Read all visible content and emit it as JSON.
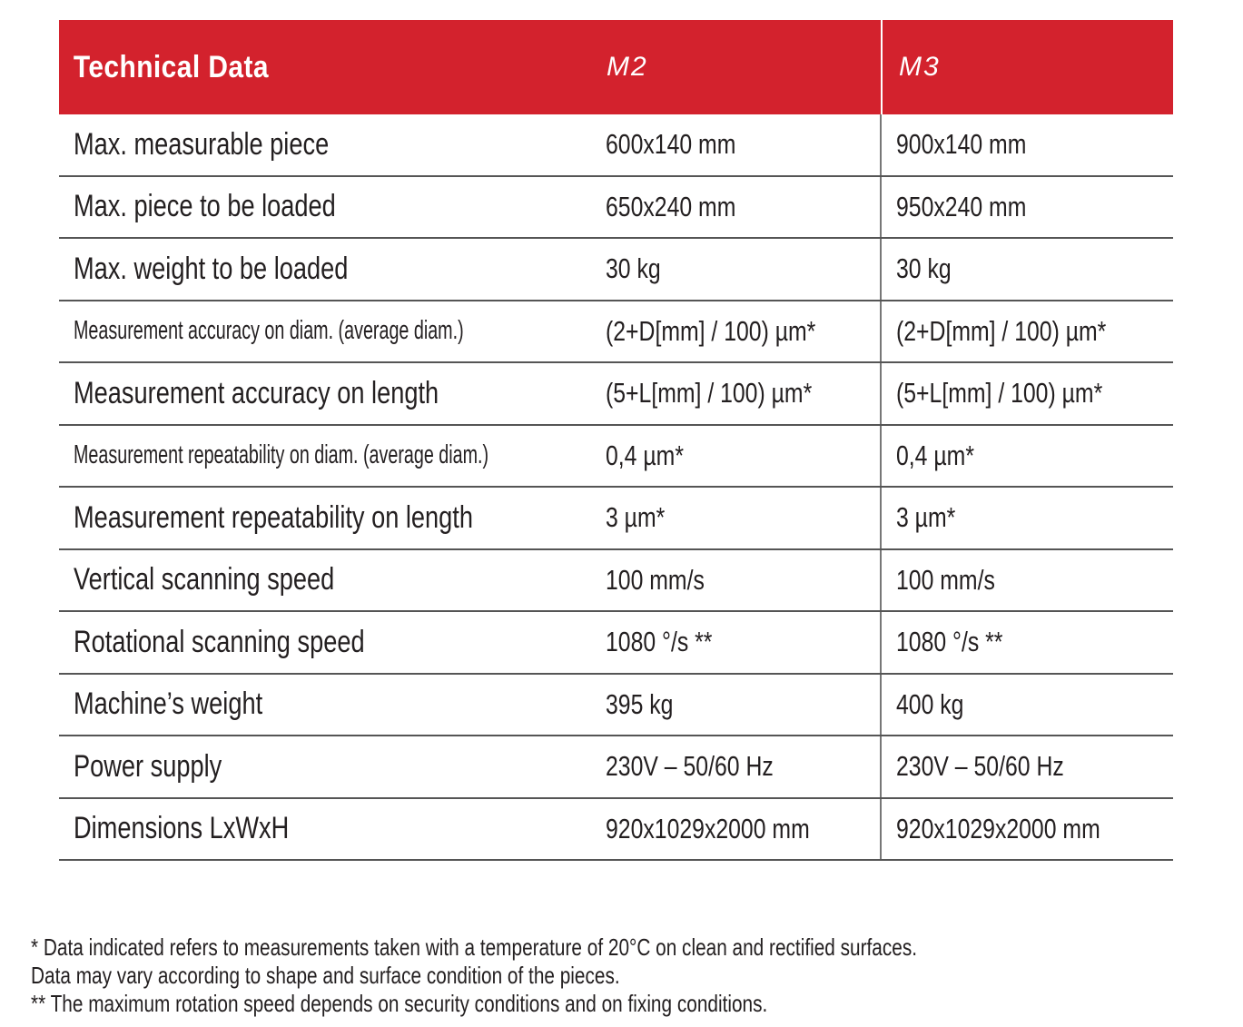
{
  "header": {
    "title": "Technical Data",
    "models": [
      "M2",
      "M3"
    ],
    "accent_color": "#d3222d"
  },
  "rows": [
    {
      "label": "Max. measurable piece",
      "m2": "600x140 mm",
      "m3": "900x140 mm",
      "small": false
    },
    {
      "label": "Max. piece to be loaded",
      "m2": "650x240 mm",
      "m3": "950x240 mm",
      "small": false
    },
    {
      "label": "Max. weight to be loaded",
      "m2": "30 kg",
      "m3": "30 kg",
      "small": false
    },
    {
      "label": "Measurement accuracy on diam. (average diam.)",
      "m2": "(2+D[mm] / 100) µm*",
      "m3": "(2+D[mm] / 100) µm*",
      "small": true
    },
    {
      "label": "Measurement accuracy on length",
      "m2": "(5+L[mm] / 100) µm*",
      "m3": "(5+L[mm] / 100) µm*",
      "small": false
    },
    {
      "label": "Measurement repeatability on diam. (average diam.)",
      "m2": "0,4 µm*",
      "m3": "0,4 µm*",
      "small": true
    },
    {
      "label": "Measurement repeatability on length",
      "m2": "3 µm*",
      "m3": "3 µm*",
      "small": false
    },
    {
      "label": "Vertical scanning speed",
      "m2": "100 mm/s",
      "m3": "100 mm/s",
      "small": false
    },
    {
      "label": "Rotational scanning speed",
      "m2": "1080 °/s **",
      "m3": "1080 °/s **",
      "small": false
    },
    {
      "label": "Machine’s weight",
      "m2": "395 kg",
      "m3": "400 kg",
      "small": false
    },
    {
      "label": "Power supply",
      "m2": "230V – 50/60 Hz",
      "m3": "230V – 50/60 Hz",
      "small": false
    },
    {
      "label": "Dimensions LxWxH",
      "m2": "920x1029x2000 mm",
      "m3": "920x1029x2000 mm",
      "small": false
    }
  ],
  "notes": [
    "* Data indicated refers to measurements taken with a temperature of 20°C on clean and rectified surfaces.",
    "Data may vary according to shape and surface condition of the pieces.",
    "** The maximum rotation speed depends on security conditions and on fixing conditions."
  ]
}
